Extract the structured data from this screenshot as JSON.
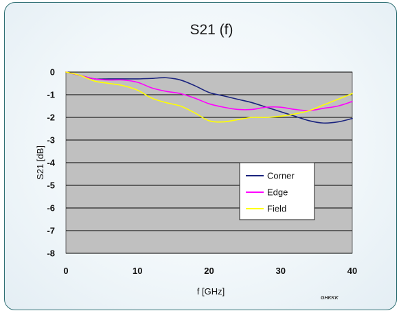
{
  "chart_data": {
    "type": "line",
    "title": "S21 (f)",
    "xlabel": "f [GHz]",
    "ylabel": "S21 [dB]",
    "xlim": [
      0,
      40
    ],
    "ylim": [
      -8,
      0
    ],
    "x_ticks": [
      "0",
      "10",
      "20",
      "30",
      "40"
    ],
    "y_ticks": [
      "0",
      "-1",
      "-2",
      "-3",
      "-4",
      "-5",
      "-6",
      "-7",
      "-8"
    ],
    "grid": "horizontal",
    "plot_background": "#c0c0c0",
    "legend_position": "lower-right",
    "watermark": "GHKKK",
    "series": [
      {
        "name": "Corner",
        "color": "#1a237e",
        "x": [
          0,
          2,
          4,
          6,
          8,
          10,
          12,
          14,
          16,
          18,
          20,
          22,
          24,
          26,
          28,
          30,
          32,
          34,
          36,
          38,
          40
        ],
        "y": [
          0,
          -0.15,
          -0.3,
          -0.3,
          -0.3,
          -0.3,
          -0.28,
          -0.25,
          -0.35,
          -0.6,
          -0.9,
          -1.05,
          -1.2,
          -1.35,
          -1.55,
          -1.75,
          -1.95,
          -2.15,
          -2.25,
          -2.2,
          -2.05
        ]
      },
      {
        "name": "Edge",
        "color": "#ff00ff",
        "x": [
          0,
          2,
          4,
          6,
          8,
          10,
          12,
          14,
          16,
          18,
          20,
          22,
          24,
          26,
          28,
          30,
          32,
          34,
          36,
          38,
          40
        ],
        "y": [
          0,
          -0.15,
          -0.3,
          -0.35,
          -0.35,
          -0.45,
          -0.7,
          -0.85,
          -0.95,
          -1.15,
          -1.4,
          -1.55,
          -1.65,
          -1.65,
          -1.55,
          -1.55,
          -1.65,
          -1.7,
          -1.6,
          -1.5,
          -1.3
        ]
      },
      {
        "name": "Field",
        "color": "#ffff00",
        "x": [
          0,
          2,
          4,
          6,
          8,
          10,
          12,
          14,
          16,
          18,
          20,
          22,
          24,
          26,
          28,
          30,
          32,
          34,
          36,
          38,
          40
        ],
        "y": [
          0,
          -0.15,
          -0.4,
          -0.5,
          -0.6,
          -0.8,
          -1.15,
          -1.35,
          -1.5,
          -1.8,
          -2.15,
          -2.2,
          -2.1,
          -2.0,
          -2.0,
          -1.95,
          -1.85,
          -1.7,
          -1.45,
          -1.2,
          -0.95
        ]
      }
    ]
  }
}
